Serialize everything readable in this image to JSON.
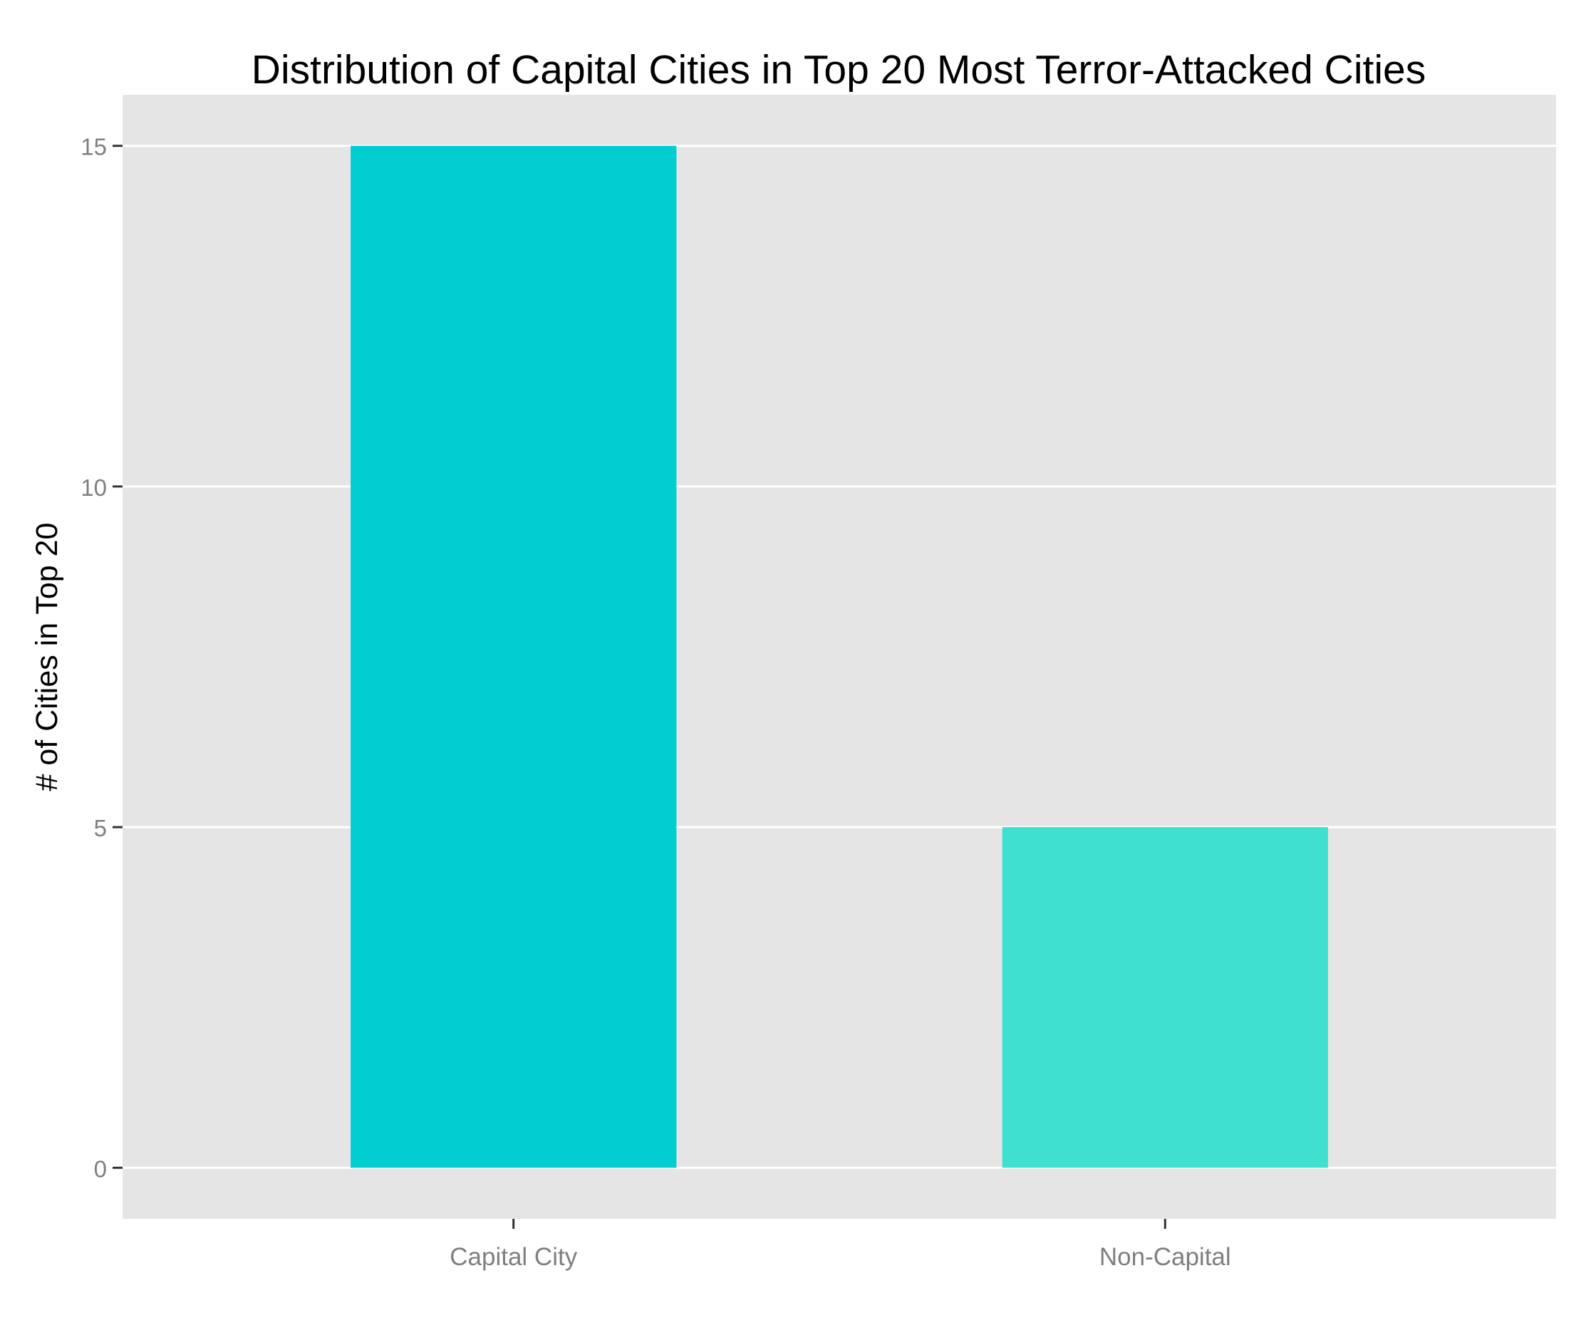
{
  "chart_data": {
    "type": "bar",
    "title": "Distribution of Capital Cities in Top 20 Most Terror-Attacked Cities",
    "xlabel": "",
    "ylabel": "# of Cities in Top 20",
    "categories": [
      "Capital City",
      "Non-Capital"
    ],
    "values": [
      15,
      5
    ],
    "colors": [
      "#00CED1",
      "#40E0D0"
    ],
    "ylim": [
      -0.75,
      15.75
    ],
    "yticks": [
      0,
      5,
      10,
      15
    ],
    "ytick_labels": [
      "0",
      "5",
      "10",
      "15"
    ],
    "grid": true,
    "legend": "none",
    "panel_background": "#E5E5E5",
    "gridline_color": "#FFFFFF"
  }
}
